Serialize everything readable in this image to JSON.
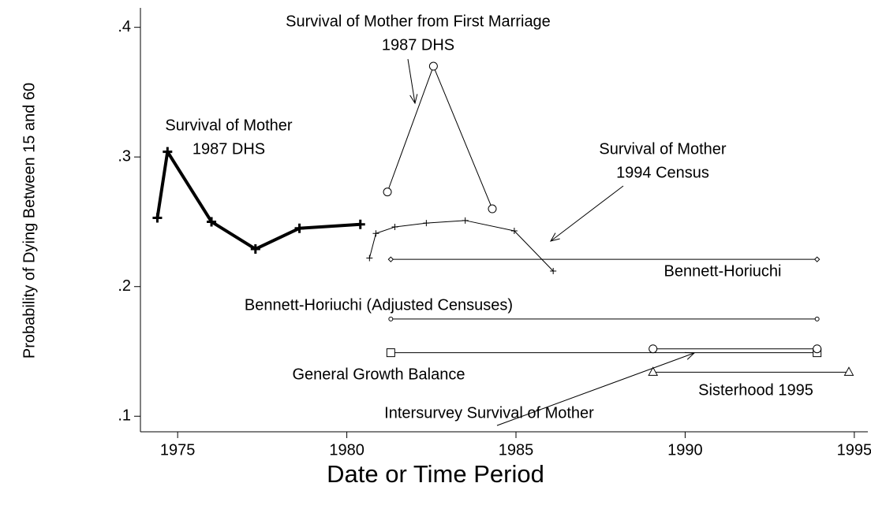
{
  "chart_data": {
    "type": "line",
    "x_label": "Date or Time Period",
    "y_label": "Probability of Dying Between 15 and 60",
    "xlim": [
      1973.9,
      1995.4
    ],
    "xticks": [
      1975,
      1980,
      1985,
      1990,
      1995
    ],
    "ylim": [
      0.088,
      0.415
    ],
    "yticks": [
      {
        "value": 0.1,
        "label": ".1"
      },
      {
        "value": 0.2,
        "label": ".2"
      },
      {
        "value": 0.3,
        "label": ".3"
      },
      {
        "value": 0.4,
        "label": ".4"
      }
    ],
    "color": "#000000",
    "series": [
      {
        "marker": "plus",
        "bold": true,
        "x": [
          1974.4,
          1974.7,
          1976.0,
          1977.3,
          1978.6,
          1980.4
        ],
        "values": [
          0.253,
          0.304,
          0.25,
          0.229,
          0.245,
          0.248
        ]
      },
      {
        "marker": "circle",
        "x": [
          1981.2,
          1982.56,
          1984.3
        ],
        "values": [
          0.273,
          0.37,
          0.26
        ]
      },
      {
        "marker": "plus",
        "x": [
          1980.67,
          1980.86,
          1981.42,
          1982.35,
          1983.5,
          1984.95,
          1986.1
        ],
        "values": [
          0.222,
          0.241,
          0.246,
          0.249,
          0.251,
          0.243,
          0.212
        ]
      },
      {
        "marker": "diamond",
        "x": [
          1981.3,
          1993.9
        ],
        "values": [
          0.221,
          0.221
        ]
      },
      {
        "marker": "smallcircle",
        "x": [
          1981.3,
          1993.9
        ],
        "values": [
          0.175,
          0.175
        ]
      },
      {
        "marker": "square",
        "x": [
          1981.3,
          1993.9
        ],
        "values": [
          0.149,
          0.149
        ]
      },
      {
        "marker": "circle",
        "x": [
          1989.05,
          1993.9
        ],
        "values": [
          0.152,
          0.152
        ]
      },
      {
        "marker": "triangle",
        "x": [
          1989.05,
          1994.84
        ],
        "values": [
          0.134,
          0.134
        ]
      }
    ],
    "annotations": [
      [
        "Survival of Mother",
        "1987 DHS"
      ],
      [
        "Survival of Mother from First Marriage",
        "1987 DHS"
      ],
      [
        "Survival of Mother",
        "1994 Census"
      ],
      [
        "Bennett-Horiuchi"
      ],
      [
        "Bennett-Horiuchi (Adjusted Censuses)"
      ],
      [
        "General Growth Balance"
      ],
      [
        "Intersurvey Survival of Mother"
      ],
      [
        "Sisterhood 1995"
      ]
    ]
  }
}
